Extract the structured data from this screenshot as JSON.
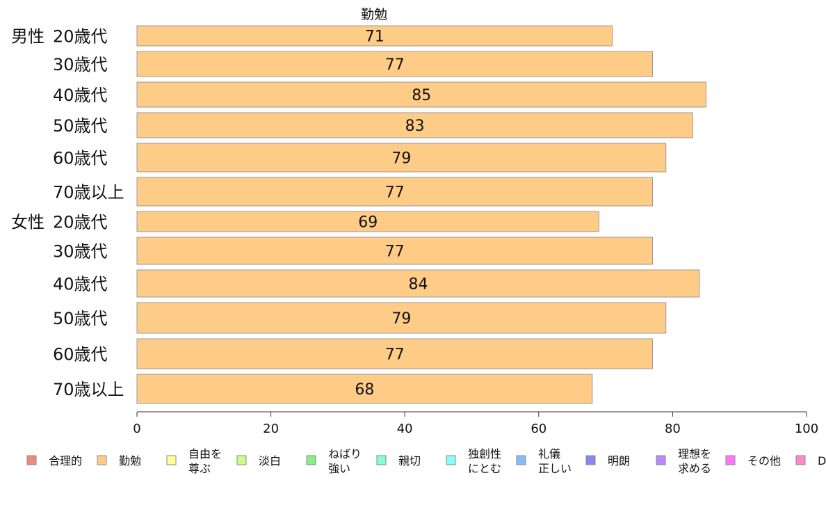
{
  "chart_data": {
    "type": "bar",
    "orientation": "horizontal",
    "series_title": "勤勉",
    "bar_color": "#FFCC88",
    "bar_stroke": "#999999",
    "groups": [
      "男性",
      "女性"
    ],
    "categories": [
      "20歳代",
      "30歳代",
      "40歳代",
      "50歳代",
      "60歳代",
      "70歳以上",
      "20歳代",
      "30歳代",
      "40歳代",
      "50歳代",
      "60歳代",
      "70歳以上"
    ],
    "category_group": [
      "男性",
      "男性",
      "男性",
      "男性",
      "男性",
      "男性",
      "女性",
      "女性",
      "女性",
      "女性",
      "女性",
      "女性"
    ],
    "values": [
      71,
      77,
      85,
      83,
      79,
      77,
      69,
      77,
      84,
      79,
      77,
      68
    ],
    "xlim": [
      0,
      100
    ],
    "xticks": [
      0,
      20,
      40,
      60,
      80,
      100
    ],
    "grid": false,
    "legend": {
      "placement": "bottom",
      "items": [
        {
          "lines": [
            "合理的"
          ],
          "color": "#F08880"
        },
        {
          "lines": [
            "勤勉"
          ],
          "color": "#FFCC88"
        },
        {
          "lines": [
            "自由を",
            "尊ぶ"
          ],
          "color": "#FFFF99"
        },
        {
          "lines": [
            "淡白"
          ],
          "color": "#CCFF88"
        },
        {
          "lines": [
            "ねばり",
            "強い"
          ],
          "color": "#88EE88"
        },
        {
          "lines": [
            "親切"
          ],
          "color": "#88FFCC"
        },
        {
          "lines": [
            "独創性",
            "にとむ"
          ],
          "color": "#88FFFF"
        },
        {
          "lines": [
            "礼儀",
            "正しい"
          ],
          "color": "#88BBFF"
        },
        {
          "lines": [
            "明朗"
          ],
          "color": "#8888EE"
        },
        {
          "lines": [
            "理想を",
            "求める"
          ],
          "color": "#BB88FF"
        },
        {
          "lines": [
            "その他"
          ],
          "color": "#FF77FF"
        },
        {
          "lines": [
            "D"
          ],
          "color": "#FF88CC"
        }
      ]
    }
  }
}
